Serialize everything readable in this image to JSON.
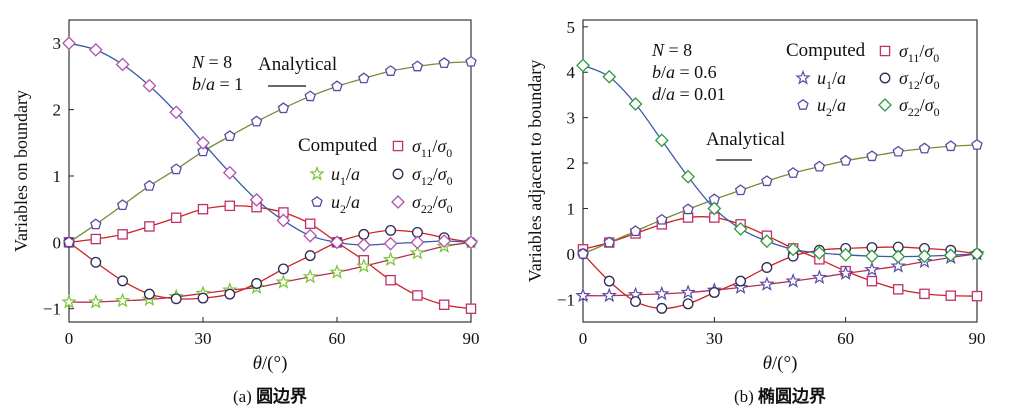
{
  "chart_data": [
    {
      "type": "line",
      "caption_prefix": "(a)",
      "caption": "圆边界",
      "xlabel": "θ/(°)",
      "ylabel": "Variables on boundary",
      "xlim": [
        0,
        90
      ],
      "ylim": [
        -1.2,
        3.35
      ],
      "xticks": [
        "0",
        "30",
        "60",
        "90"
      ],
      "yticks": [
        "−1",
        "0",
        "1",
        "2",
        "3"
      ],
      "params": [
        "N = 8",
        "b/a = 1"
      ],
      "legend_analytical": "Analytical",
      "legend_computed": "Computed",
      "x": [
        0,
        6,
        12,
        18,
        24,
        30,
        36,
        42,
        48,
        54,
        60,
        66,
        72,
        78,
        84,
        90
      ],
      "series": [
        {
          "name": "σ11/σ0",
          "marker": "square",
          "color": "#c0306a",
          "line_color": "#cc2222",
          "values": [
            0.0,
            0.05,
            0.12,
            0.24,
            0.37,
            0.5,
            0.55,
            0.53,
            0.45,
            0.28,
            0.0,
            -0.27,
            -0.57,
            -0.8,
            -0.94,
            -1.0
          ]
        },
        {
          "name": "u1/a",
          "marker": "star",
          "color": "#7ac230",
          "line_color": "#b03050",
          "values": [
            -0.9,
            -0.9,
            -0.88,
            -0.86,
            -0.82,
            -0.77,
            -0.72,
            -0.68,
            -0.6,
            -0.52,
            -0.45,
            -0.36,
            -0.26,
            -0.16,
            -0.06,
            0.0
          ]
        },
        {
          "name": "σ12/σ0",
          "marker": "circle",
          "color": "#2a2a55",
          "line_color": "#cc2222",
          "values": [
            0.0,
            -0.3,
            -0.58,
            -0.78,
            -0.85,
            -0.84,
            -0.78,
            -0.62,
            -0.4,
            -0.2,
            0.0,
            0.12,
            0.18,
            0.15,
            0.07,
            0.0
          ]
        },
        {
          "name": "u2/a",
          "marker": "pentagon",
          "color": "#5a4aa8",
          "line_color": "#7a8a3a",
          "values": [
            0.0,
            0.27,
            0.56,
            0.85,
            1.1,
            1.37,
            1.6,
            1.82,
            2.02,
            2.2,
            2.35,
            2.47,
            2.58,
            2.65,
            2.7,
            2.72
          ]
        },
        {
          "name": "σ22/σ0",
          "marker": "diamond",
          "color": "#b050b0",
          "line_color": "#3a5aa8",
          "values": [
            3.0,
            2.9,
            2.68,
            2.36,
            1.96,
            1.5,
            1.05,
            0.64,
            0.33,
            0.1,
            0.0,
            -0.04,
            -0.02,
            0.0,
            0.02,
            0.0
          ]
        }
      ]
    },
    {
      "type": "line",
      "caption_prefix": "(b)",
      "caption": "椭圆边界",
      "xlabel": "θ/(°)",
      "ylabel": "Variables adjacent to boundary",
      "xlim": [
        0,
        90
      ],
      "ylim": [
        -1.5,
        5.15
      ],
      "xticks": [
        "0",
        "30",
        "60",
        "90"
      ],
      "yticks": [
        "−1",
        "0",
        "1",
        "2",
        "3",
        "4",
        "5"
      ],
      "params": [
        "N = 8",
        "b/a = 0.6",
        "d/a = 0.01"
      ],
      "legend_analytical": "Analytical",
      "legend_computed": "Computed",
      "x": [
        0,
        6,
        12,
        18,
        24,
        30,
        36,
        42,
        48,
        54,
        60,
        66,
        72,
        78,
        84,
        90
      ],
      "series": [
        {
          "name": "σ11/σ0",
          "marker": "square",
          "color": "#c0306a",
          "line_color": "#cc2222",
          "values": [
            0.1,
            0.25,
            0.45,
            0.65,
            0.8,
            0.8,
            0.65,
            0.4,
            0.12,
            -0.12,
            -0.38,
            -0.6,
            -0.78,
            -0.88,
            -0.92,
            -0.93
          ]
        },
        {
          "name": "u1/a",
          "marker": "star",
          "color": "#5a4aa8",
          "line_color": "#b03050",
          "values": [
            -0.92,
            -0.92,
            -0.9,
            -0.88,
            -0.85,
            -0.8,
            -0.74,
            -0.67,
            -0.6,
            -0.52,
            -0.43,
            -0.35,
            -0.27,
            -0.17,
            -0.08,
            0.0
          ]
        },
        {
          "name": "σ12/σ0",
          "marker": "circle",
          "color": "#2a2a55",
          "line_color": "#cc2222",
          "values": [
            0.0,
            -0.6,
            -1.05,
            -1.2,
            -1.1,
            -0.85,
            -0.6,
            -0.3,
            -0.05,
            0.08,
            0.12,
            0.14,
            0.15,
            0.12,
            0.08,
            0.0
          ]
        },
        {
          "name": "u2/a",
          "marker": "pentagon",
          "color": "#5a4aa8",
          "line_color": "#7a8a3a",
          "values": [
            0.0,
            0.25,
            0.5,
            0.75,
            0.98,
            1.2,
            1.4,
            1.6,
            1.78,
            1.92,
            2.05,
            2.15,
            2.25,
            2.32,
            2.37,
            2.4
          ]
        },
        {
          "name": "σ22/σ0",
          "marker": "diamond",
          "color": "#2e9a3a",
          "line_color": "#3a5aa8",
          "values": [
            4.15,
            3.9,
            3.3,
            2.5,
            1.7,
            1.0,
            0.55,
            0.28,
            0.1,
            0.02,
            -0.02,
            -0.05,
            -0.06,
            -0.05,
            -0.03,
            0.0
          ]
        }
      ]
    }
  ]
}
